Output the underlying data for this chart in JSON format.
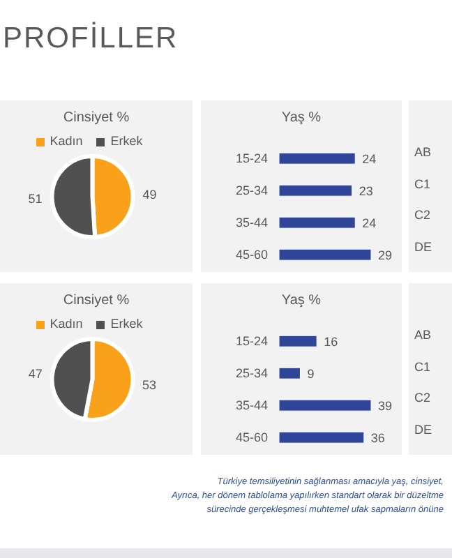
{
  "chart_data": [
    {
      "type": "pie",
      "title": "PROFİLLER",
      "subtitle": "Cinsiyet %",
      "categories": [
        "Kadın",
        "Erkek"
      ],
      "values": [
        49,
        51
      ],
      "colors": [
        "#f9a11b",
        "#505050"
      ],
      "data_labels": true,
      "legend": "top"
    },
    {
      "type": "bar",
      "orientation": "horizontal",
      "subtitle": "Yaş %",
      "categories": [
        "15-24",
        "25-34",
        "35-44",
        "45-60"
      ],
      "values": [
        24,
        23,
        24,
        29
      ],
      "color": "#2e4598",
      "data_labels": true
    },
    {
      "type": "other",
      "categories": [
        "AB",
        "C1",
        "C2",
        "DE"
      ]
    },
    {
      "type": "pie",
      "subtitle": "Cinsiyet %",
      "categories": [
        "Kadın",
        "Erkek"
      ],
      "values": [
        53,
        47
      ],
      "colors": [
        "#f9a11b",
        "#505050"
      ],
      "data_labels": true,
      "legend": "top"
    },
    {
      "type": "bar",
      "orientation": "horizontal",
      "subtitle": "Yaş %",
      "categories": [
        "15-24",
        "25-34",
        "35-44",
        "45-60"
      ],
      "values": [
        16,
        9,
        39,
        36
      ],
      "color": "#2e4598",
      "data_labels": true,
      "annotations": [
        "Türkiye temsiliyetinin sağlanması amacıyla  yaş, cinsiyet,",
        "Ayrıca, her dönem tablolama yapılırken standart olarak bir düzeltme",
        "sürecinde gerçekleşmesi muhtemel ufak sapmaların önüne"
      ]
    },
    {
      "type": "other",
      "categories": [
        "AB",
        "C1",
        "C2",
        "DE"
      ]
    }
  ]
}
